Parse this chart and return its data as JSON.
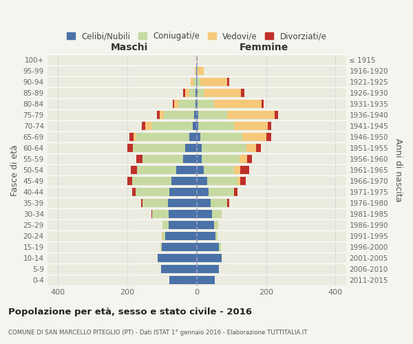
{
  "age_groups": [
    "0-4",
    "5-9",
    "10-14",
    "15-19",
    "20-24",
    "25-29",
    "30-34",
    "35-39",
    "40-44",
    "45-49",
    "50-54",
    "55-59",
    "60-64",
    "65-69",
    "70-74",
    "75-79",
    "80-84",
    "85-89",
    "90-94",
    "95-99",
    "100+"
  ],
  "birth_years": [
    "2011-2015",
    "2006-2010",
    "2001-2005",
    "1996-2000",
    "1991-1995",
    "1986-1990",
    "1981-1985",
    "1976-1980",
    "1971-1975",
    "1966-1970",
    "1961-1965",
    "1956-1960",
    "1951-1955",
    "1946-1950",
    "1941-1945",
    "1936-1940",
    "1931-1935",
    "1926-1930",
    "1921-1925",
    "1916-1920",
    "≤ 1915"
  ],
  "colors": {
    "celibe": "#4a72a8",
    "coniugato": "#c5d9a0",
    "vedovo": "#f5c87a",
    "divorziato": "#c0302a"
  },
  "maschi": {
    "celibe": [
      78,
      102,
      112,
      100,
      90,
      80,
      80,
      82,
      78,
      72,
      58,
      38,
      32,
      22,
      12,
      7,
      4,
      3,
      2,
      1,
      0
    ],
    "coniugato": [
      0,
      0,
      0,
      5,
      8,
      18,
      48,
      73,
      98,
      113,
      113,
      118,
      152,
      152,
      118,
      88,
      48,
      18,
      8,
      2,
      0
    ],
    "vedovo": [
      0,
      0,
      0,
      0,
      2,
      0,
      0,
      0,
      0,
      0,
      0,
      0,
      0,
      8,
      18,
      12,
      12,
      12,
      8,
      2,
      0
    ],
    "divorziato": [
      0,
      0,
      0,
      0,
      0,
      0,
      3,
      5,
      10,
      15,
      18,
      18,
      15,
      12,
      10,
      8,
      5,
      5,
      0,
      0,
      0
    ]
  },
  "femmine": {
    "nubile": [
      52,
      65,
      72,
      65,
      55,
      50,
      45,
      40,
      35,
      30,
      20,
      15,
      15,
      10,
      5,
      5,
      2,
      2,
      0,
      0,
      0
    ],
    "coniugata": [
      0,
      0,
      0,
      5,
      5,
      13,
      28,
      48,
      73,
      88,
      88,
      108,
      128,
      122,
      102,
      82,
      48,
      18,
      10,
      2,
      0
    ],
    "vedova": [
      0,
      0,
      0,
      0,
      0,
      0,
      0,
      0,
      0,
      8,
      18,
      22,
      28,
      68,
      98,
      138,
      138,
      108,
      78,
      18,
      2
    ],
    "divorziata": [
      0,
      0,
      0,
      0,
      0,
      0,
      0,
      5,
      10,
      15,
      25,
      15,
      15,
      15,
      10,
      10,
      5,
      10,
      5,
      0,
      0
    ]
  },
  "xlim": 430,
  "title": "Popolazione per età, sesso e stato civile - 2016",
  "subtitle": "COMUNE DI SAN MARCELLO PITEGLIO (PT) - Dati ISTAT 1° gennaio 2016 - Elaborazione TUTTITALIA.IT",
  "xlabel_left": "Maschi",
  "xlabel_right": "Femmine",
  "ylabel_left": "Fasce di età",
  "ylabel_right": "Anni di nascita",
  "legend_labels": [
    "Celibi/Nubili",
    "Coniugati/e",
    "Vedovi/e",
    "Divorziati/e"
  ],
  "bg_color": "#f5f5f0",
  "plot_bg": "#ebebdf",
  "xticks": [
    -400,
    -200,
    0,
    200,
    400
  ]
}
